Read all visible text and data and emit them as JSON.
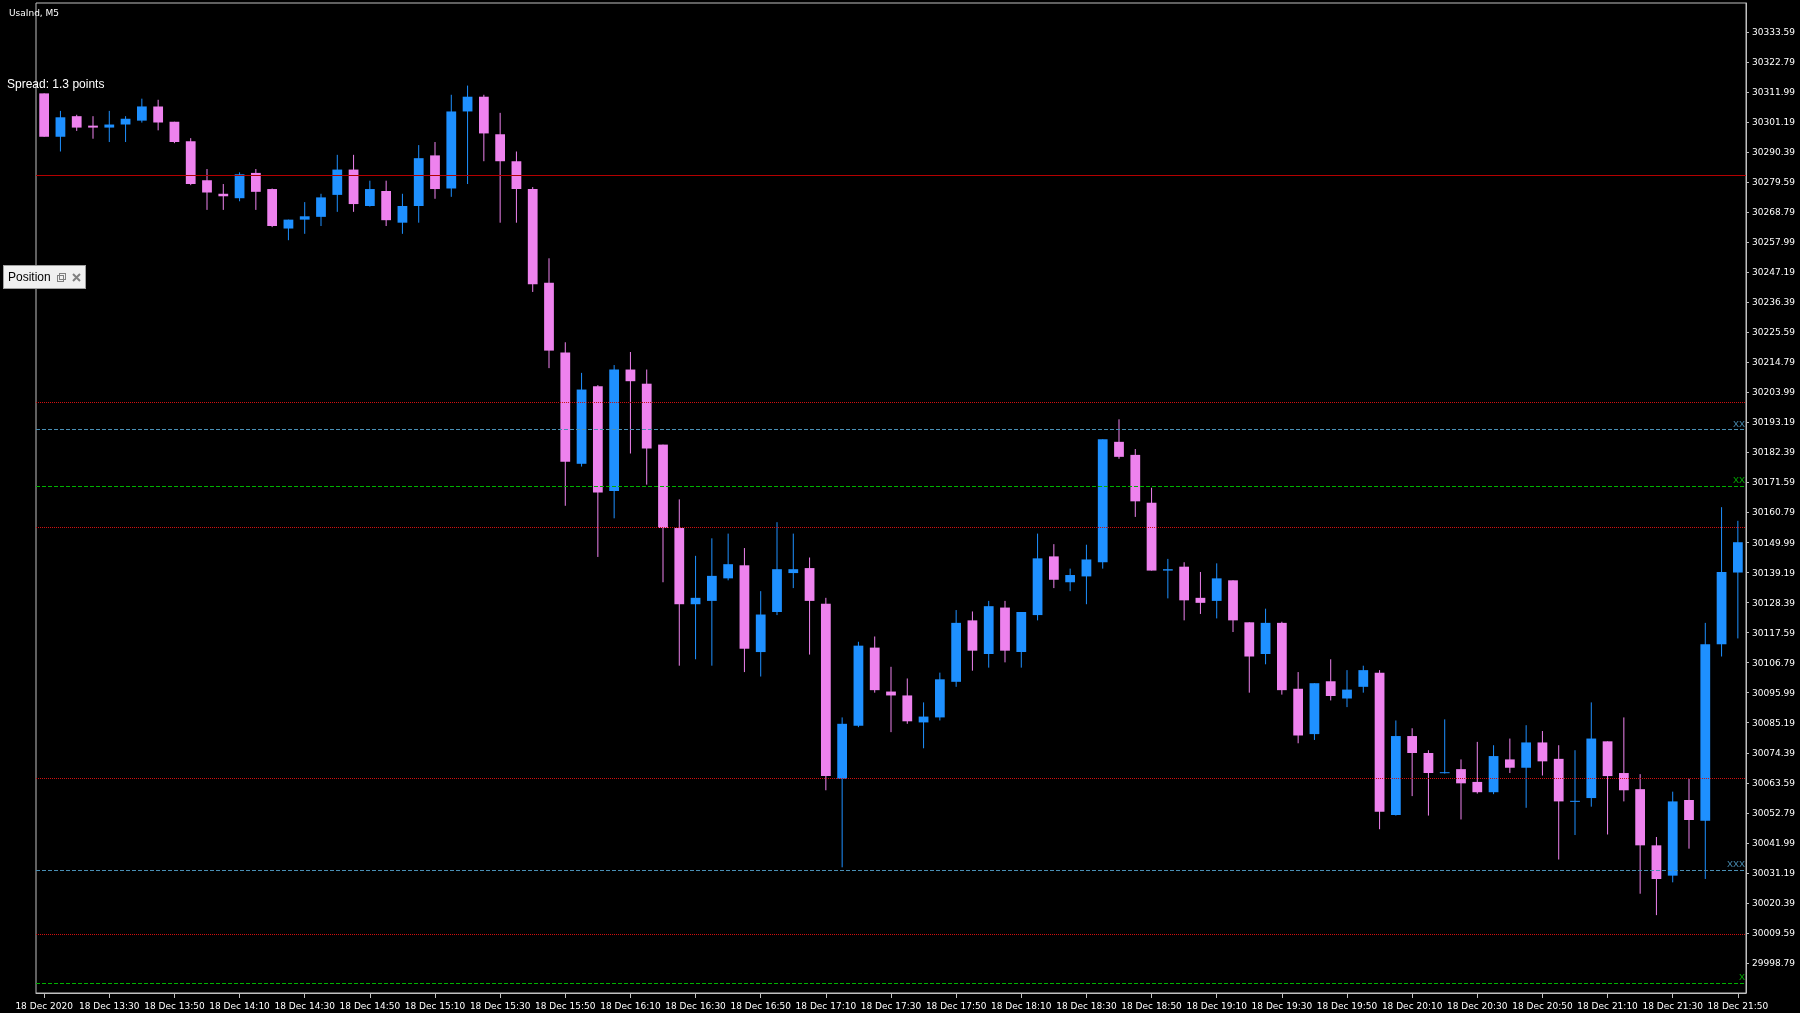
{
  "chart_data": {
    "type": "candlestick",
    "title": "UsaInd, M5",
    "annotations": [
      "Spread: 1.3 points",
      "Position"
    ],
    "categories": [
      "18 Dec 2020",
      null,
      null,
      null,
      "18 Dec 13:30",
      null,
      null,
      null,
      "18 Dec 13:50",
      null,
      null,
      null,
      "18 Dec 14:10",
      null,
      null,
      null,
      "18 Dec 14:30",
      null,
      null,
      null,
      "18 Dec 14:50",
      null,
      null,
      null,
      "18 Dec 15:10",
      null,
      null,
      null,
      "18 Dec 15:30",
      null,
      null,
      null,
      "18 Dec 15:50",
      null,
      null,
      null,
      "18 Dec 16:10",
      null,
      null,
      null,
      "18 Dec 16:30",
      null,
      null,
      null,
      "18 Dec 16:50",
      null,
      null,
      null,
      "18 Dec 17:10",
      null,
      null,
      null,
      "18 Dec 17:30",
      null,
      null,
      null,
      "18 Dec 17:50",
      null,
      null,
      null,
      "18 Dec 18:10",
      null,
      null,
      null,
      "18 Dec 18:30",
      null,
      null,
      null,
      "18 Dec 18:50",
      null,
      null,
      null,
      "18 Dec 19:10",
      null,
      null,
      null,
      "18 Dec 19:30",
      null,
      null,
      null,
      "18 Dec 19:50",
      null,
      null,
      null,
      "18 Dec 20:10",
      null,
      null,
      null,
      "18 Dec 20:30",
      null,
      null,
      null,
      "18 Dec 20:50",
      null,
      null,
      null,
      "18 Dec 21:10",
      null,
      null,
      null,
      "18 Dec 21:30",
      null,
      null,
      null,
      "18 Dec 21:50"
    ],
    "ohlc": [
      [
        30311.5,
        30311.5,
        30295.9,
        30295.9
      ],
      [
        30295.9,
        30305.2,
        30290.6,
        30302.9
      ],
      [
        30303.3,
        30303.8,
        30298.0,
        30299.2
      ],
      [
        30299.9,
        30303.3,
        30295.2,
        30299.2
      ],
      [
        30299.2,
        30305.2,
        30294.0,
        30300.3
      ],
      [
        30300.3,
        30303.3,
        30294.0,
        30302.4
      ],
      [
        30301.7,
        30309.6,
        30301.0,
        30306.8
      ],
      [
        30306.8,
        30309.2,
        30298.2,
        30301.0
      ],
      [
        30301.3,
        30301.3,
        30293.6,
        30294.0
      ],
      [
        30294.3,
        30295.4,
        30278.5,
        30278.9
      ],
      [
        30280.3,
        30284.3,
        30269.6,
        30275.9
      ],
      [
        30275.4,
        30278.9,
        30269.6,
        30274.5
      ],
      [
        30273.8,
        30283.1,
        30272.7,
        30282.4
      ],
      [
        30282.9,
        30284.3,
        30269.6,
        30276.1
      ],
      [
        30277.1,
        30277.3,
        30263.4,
        30263.8
      ],
      [
        30262.9,
        30266.1,
        30258.7,
        30266.1
      ],
      [
        30266.1,
        30272.4,
        30261.0,
        30267.3
      ],
      [
        30267.1,
        30275.4,
        30263.8,
        30274.1
      ],
      [
        30275.0,
        30289.4,
        30268.9,
        30284.1
      ],
      [
        30284.1,
        30289.4,
        30268.9,
        30271.7
      ],
      [
        30271.0,
        30280.1,
        30270.8,
        30277.1
      ],
      [
        30276.4,
        30280.1,
        30263.8,
        30265.9
      ],
      [
        30265.0,
        30275.4,
        30261.0,
        30271.0
      ],
      [
        30271.0,
        30292.9,
        30265.0,
        30288.2
      ],
      [
        30289.2,
        30294.0,
        30273.6,
        30277.1
      ],
      [
        30277.3,
        30311.0,
        30274.3,
        30305.0
      ],
      [
        30305.0,
        30314.3,
        30278.9,
        30310.3
      ],
      [
        30310.3,
        30311.0,
        30287.1,
        30297.1
      ],
      [
        30296.8,
        30304.5,
        30265.0,
        30287.1
      ],
      [
        30287.1,
        30290.6,
        30265.0,
        30277.1
      ],
      [
        30277.1,
        30277.8,
        30240.1,
        30242.9
      ],
      [
        30243.4,
        30252.2,
        30212.7,
        30219.0
      ],
      [
        30218.3,
        30222.0,
        30163.2,
        30179.0
      ],
      [
        30178.3,
        30211.0,
        30177.3,
        30205.0
      ],
      [
        30206.2,
        30206.6,
        30144.8,
        30168.0
      ],
      [
        30168.5,
        30213.8,
        30158.7,
        30212.2
      ],
      [
        30212.2,
        30218.5,
        30182.0,
        30208.0
      ],
      [
        30207.1,
        30212.2,
        30170.8,
        30183.8
      ],
      [
        30185.2,
        30185.2,
        30135.7,
        30155.2
      ],
      [
        30155.2,
        30165.5,
        30105.7,
        30127.8
      ],
      [
        30127.8,
        30145.2,
        30108.0,
        30130.1
      ],
      [
        30129.0,
        30151.5,
        30105.7,
        30138.0
      ],
      [
        30137.1,
        30153.2,
        30136.4,
        30142.2
      ],
      [
        30141.8,
        30148.0,
        30103.4,
        30111.8
      ],
      [
        30110.6,
        30132.5,
        30101.8,
        30124.1
      ],
      [
        30125.0,
        30157.3,
        30123.9,
        30140.4
      ],
      [
        30139.0,
        30153.2,
        30133.6,
        30140.4
      ],
      [
        30140.8,
        30144.6,
        30109.7,
        30129.0
      ],
      [
        30128.0,
        30130.1,
        30060.9,
        30066.0
      ],
      [
        30065.0,
        30087.1,
        30033.2,
        30084.8
      ],
      [
        30084.1,
        30114.3,
        30083.6,
        30112.9
      ],
      [
        30112.2,
        30116.2,
        30096.0,
        30096.9
      ],
      [
        30096.4,
        30105.3,
        30081.8,
        30095.0
      ],
      [
        30095.0,
        30101.1,
        30084.8,
        30085.7
      ],
      [
        30085.3,
        30092.5,
        30076.0,
        30087.4
      ],
      [
        30087.1,
        30103.2,
        30086.0,
        30100.8
      ],
      [
        30099.9,
        30125.7,
        30098.1,
        30121.1
      ],
      [
        30122.0,
        30125.2,
        30103.9,
        30111.1
      ],
      [
        30109.9,
        30129.0,
        30105.0,
        30127.1
      ],
      [
        30126.6,
        30129.0,
        30106.9,
        30111.1
      ],
      [
        30110.6,
        30125.0,
        30105.0,
        30125.0
      ],
      [
        30123.9,
        30153.2,
        30122.0,
        30144.3
      ],
      [
        30145.0,
        30149.4,
        30133.6,
        30136.6
      ],
      [
        30135.7,
        30140.6,
        30132.5,
        30138.3
      ],
      [
        30137.8,
        30149.2,
        30127.8,
        30143.9
      ],
      [
        30142.9,
        30187.1,
        30140.6,
        30187.1
      ],
      [
        30186.2,
        30194.3,
        30180.1,
        30180.8
      ],
      [
        30181.5,
        30183.6,
        30159.2,
        30164.8
      ],
      [
        30164.3,
        30169.7,
        30139.9,
        30139.9
      ],
      [
        30139.9,
        30144.1,
        30129.9,
        30140.4
      ],
      [
        30141.3,
        30142.9,
        30122.0,
        30129.2
      ],
      [
        30130.1,
        30139.4,
        30124.3,
        30128.3
      ],
      [
        30129.0,
        30142.5,
        30122.7,
        30137.1
      ],
      [
        30136.4,
        30136.4,
        30117.8,
        30122.0
      ],
      [
        30121.3,
        30121.3,
        30096.0,
        30109.0
      ],
      [
        30109.9,
        30126.2,
        30106.2,
        30121.1
      ],
      [
        30121.1,
        30121.5,
        30095.3,
        30096.9
      ],
      [
        30097.4,
        30103.4,
        30077.8,
        30080.6
      ],
      [
        30081.1,
        30099.4,
        30079.0,
        30099.4
      ],
      [
        30100.1,
        30108.0,
        30093.2,
        30094.8
      ],
      [
        30093.9,
        30104.1,
        30090.8,
        30097.1
      ],
      [
        30098.1,
        30105.7,
        30096.0,
        30104.1
      ],
      [
        30103.2,
        30104.1,
        30046.9,
        30053.2
      ],
      [
        30052.0,
        30086.0,
        30051.8,
        30080.4
      ],
      [
        30080.4,
        30083.2,
        30058.8,
        30074.3
      ],
      [
        30074.3,
        30075.3,
        30051.8,
        30067.1
      ],
      [
        30067.4,
        30086.4,
        30066.9,
        30067.4
      ],
      [
        30068.5,
        30072.0,
        30050.4,
        30063.4
      ],
      [
        30063.9,
        30078.3,
        30059.7,
        30060.2
      ],
      [
        30060.2,
        30077.1,
        30059.5,
        30073.2
      ],
      [
        30072.0,
        30079.5,
        30067.1,
        30069.0
      ],
      [
        30069.0,
        30084.3,
        30054.6,
        30078.1
      ],
      [
        30078.1,
        30082.2,
        30066.2,
        30071.3
      ],
      [
        30072.2,
        30077.1,
        30036.0,
        30056.9
      ],
      [
        30057.1,
        30075.3,
        30044.8,
        30057.1
      ],
      [
        30058.1,
        30092.5,
        30055.0,
        30079.5
      ],
      [
        30078.5,
        30078.5,
        30045.0,
        30066.0
      ],
      [
        30067.1,
        30087.1,
        30056.9,
        30060.9
      ],
      [
        30061.3,
        30066.7,
        30023.7,
        30041.1
      ],
      [
        30041.1,
        30044.1,
        30016.0,
        30029.0
      ],
      [
        30030.2,
        30060.4,
        30027.8,
        30056.9
      ],
      [
        30057.4,
        30065.0,
        30039.9,
        30050.2
      ],
      [
        30049.9,
        30121.1,
        30029.0,
        30113.4
      ],
      [
        30113.4,
        30162.7,
        30109.0,
        30139.4
      ],
      [
        30139.2,
        30157.8,
        30115.5,
        30150.1
      ]
    ],
    "colors": [
      "#ee82ee",
      "#1e90ff",
      "#ee82ee",
      "#ee82ee",
      "#1e90ff",
      "#1e90ff",
      "#1e90ff",
      "#ee82ee",
      "#ee82ee",
      "#ee82ee",
      "#ee82ee",
      "#ee82ee",
      "#1e90ff",
      "#ee82ee",
      "#ee82ee",
      "#1e90ff",
      "#1e90ff",
      "#1e90ff",
      "#1e90ff",
      "#ee82ee",
      "#1e90ff",
      "#ee82ee",
      "#1e90ff",
      "#1e90ff",
      "#ee82ee",
      "#1e90ff",
      "#1e90ff",
      "#ee82ee",
      "#ee82ee",
      "#ee82ee",
      "#ee82ee",
      "#ee82ee",
      "#ee82ee",
      "#1e90ff",
      "#ee82ee",
      "#1e90ff",
      "#ee82ee",
      "#ee82ee",
      "#ee82ee",
      "#ee82ee",
      "#1e90ff",
      "#1e90ff",
      "#1e90ff",
      "#ee82ee",
      "#1e90ff",
      "#1e90ff",
      "#1e90ff",
      "#ee82ee",
      "#ee82ee",
      "#1e90ff",
      "#1e90ff",
      "#ee82ee",
      "#ee82ee",
      "#ee82ee",
      "#1e90ff",
      "#1e90ff",
      "#1e90ff",
      "#ee82ee",
      "#1e90ff",
      "#ee82ee",
      "#1e90ff",
      "#1e90ff",
      "#ee82ee",
      "#1e90ff",
      "#1e90ff",
      "#1e90ff",
      "#ee82ee",
      "#ee82ee",
      "#ee82ee",
      "#1e90ff",
      "#ee82ee",
      "#ee82ee",
      "#1e90ff",
      "#ee82ee",
      "#ee82ee",
      "#1e90ff",
      "#ee82ee",
      "#ee82ee",
      "#1e90ff",
      "#ee82ee",
      "#1e90ff",
      "#1e90ff",
      "#ee82ee",
      "#1e90ff",
      "#ee82ee",
      "#ee82ee",
      "#1e90ff",
      "#ee82ee",
      "#ee82ee",
      "#1e90ff",
      "#ee82ee",
      "#1e90ff",
      "#ee82ee",
      "#ee82ee",
      "#1e90ff",
      "#1e90ff",
      "#ee82ee",
      "#ee82ee",
      "#ee82ee",
      "#ee82ee",
      "#1e90ff",
      "#ee82ee",
      "#1e90ff",
      "#1e90ff",
      "#1e90ff"
    ],
    "ylim": [
      29988,
      30344
    ],
    "yticks": [
      29998.79,
      30009.59,
      30020.39,
      30031.19,
      30041.99,
      30052.79,
      30063.59,
      30074.39,
      30085.19,
      30095.99,
      30106.79,
      30117.59,
      30128.39,
      30139.19,
      30149.99,
      30160.79,
      30171.59,
      30182.39,
      30193.19,
      30203.99,
      30214.79,
      30225.59,
      30236.39,
      30247.19,
      30257.99,
      30268.79,
      30279.59,
      30290.39,
      30301.19,
      30311.99,
      30322.79,
      30333.59
    ],
    "ref_lines": [
      {
        "axis": "y",
        "value": 30282.0,
        "label": null,
        "color": "#b40000",
        "line_style": "solid"
      },
      {
        "axis": "y",
        "value": 30200.4,
        "label": null,
        "color": "#d01010",
        "line_style": "dotted"
      },
      {
        "axis": "y",
        "value": 30190.6,
        "label": "XX",
        "color": "#4a8fb5",
        "line_style": "dashed"
      },
      {
        "axis": "y",
        "value": 30170.4,
        "label": "XX",
        "color": "#00b000",
        "line_style": "dashed"
      },
      {
        "axis": "y",
        "value": 30155.5,
        "label": null,
        "color": "#d01010",
        "line_style": "dotted"
      },
      {
        "axis": "y",
        "value": 30065.3,
        "label": null,
        "color": "#d01010",
        "line_style": "dotted"
      },
      {
        "axis": "y",
        "value": 30032.3,
        "label": "XXX",
        "color": "#4a8fb5",
        "line_style": "dashed"
      },
      {
        "axis": "y",
        "value": 30009.0,
        "label": null,
        "color": "#d01010",
        "line_style": "dotted"
      },
      {
        "axis": "y",
        "value": 29991.6,
        "label": "X",
        "color": "#00b000",
        "line_style": "dashed"
      }
    ]
  }
}
